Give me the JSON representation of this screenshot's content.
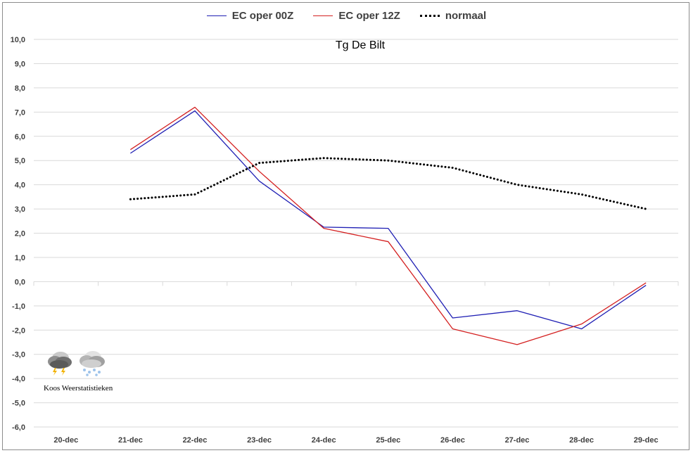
{
  "legend": {
    "items": [
      {
        "label": "EC oper 00Z",
        "color": "#1f1fb4",
        "style": "solid"
      },
      {
        "label": "EC oper 12Z",
        "color": "#d42020",
        "style": "solid"
      },
      {
        "label": "normaal",
        "color": "#000000",
        "style": "dotted"
      }
    ]
  },
  "watermark": {
    "text": "Koos Weerstatistieken",
    "icons": [
      "thunderstorm-cloud-icon",
      "snow-cloud-icon"
    ]
  },
  "chart_data": {
    "type": "line",
    "title": "Tg De Bilt",
    "xlabel": "",
    "ylabel": "",
    "categories": [
      "20-dec",
      "21-dec",
      "22-dec",
      "23-dec",
      "24-dec",
      "25-dec",
      "26-dec",
      "27-dec",
      "28-dec",
      "29-dec"
    ],
    "ylim": [
      -6.0,
      10.0
    ],
    "yticks": [
      "10,0",
      "9,0",
      "8,0",
      "7,0",
      "6,0",
      "5,0",
      "4,0",
      "3,0",
      "2,0",
      "1,0",
      "0,0",
      "-1,0",
      "-2,0",
      "-3,0",
      "-4,0",
      "-5,0",
      "-6,0"
    ],
    "grid": true,
    "legend_position": "top",
    "series": [
      {
        "name": "EC oper 00Z",
        "color": "#1f1fb4",
        "values": [
          null,
          5.3,
          7.05,
          4.15,
          2.25,
          2.2,
          -1.5,
          -1.2,
          -1.95,
          -0.15
        ]
      },
      {
        "name": "EC oper 12Z",
        "color": "#d42020",
        "values": [
          null,
          5.45,
          7.2,
          4.55,
          2.2,
          1.65,
          -1.95,
          -2.6,
          -1.75,
          -0.05
        ]
      },
      {
        "name": "normaal",
        "color": "#000000",
        "values": [
          null,
          3.4,
          3.6,
          4.9,
          5.1,
          5.0,
          4.7,
          4.0,
          3.6,
          3.0
        ]
      }
    ]
  }
}
